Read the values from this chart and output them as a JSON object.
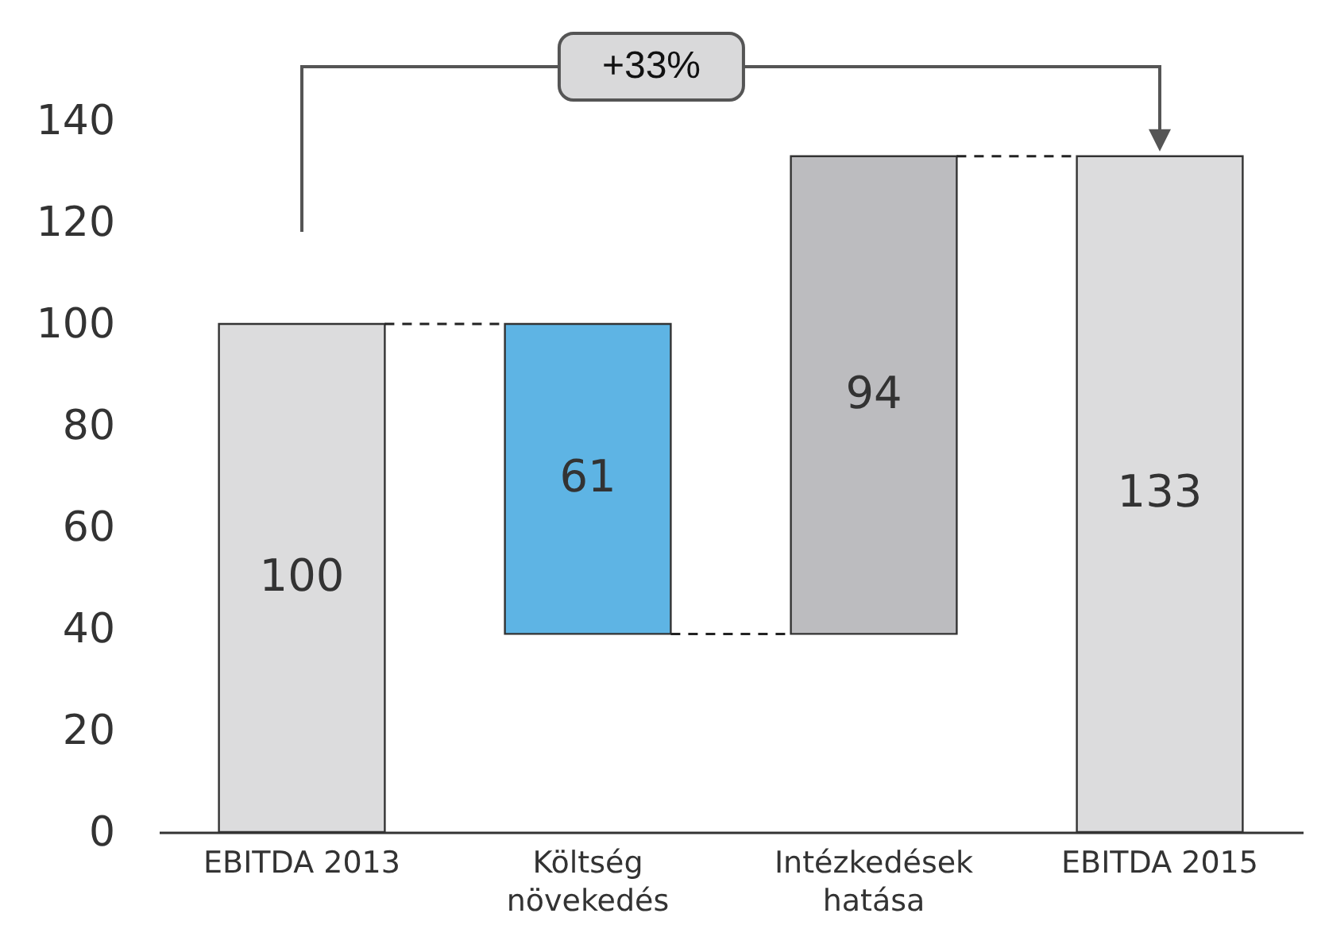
{
  "chart_data": {
    "type": "bar",
    "categories": [
      "EBITDA 2013",
      "Költség növekedés",
      "Intézkedések hatása",
      "EBITDA 2015"
    ],
    "values": [
      100,
      61,
      94,
      133
    ],
    "base": [
      0,
      39,
      39,
      0
    ],
    "colors": [
      "#dcdcdd",
      "#5eb4e4",
      "#bcbcbf",
      "#dcdcdd"
    ],
    "data_labels": true,
    "ylim": [
      0,
      140
    ],
    "yticks": [
      0,
      20,
      40,
      60,
      80,
      100,
      120,
      140
    ],
    "grid": false,
    "annotations": [
      "+33%"
    ]
  }
}
